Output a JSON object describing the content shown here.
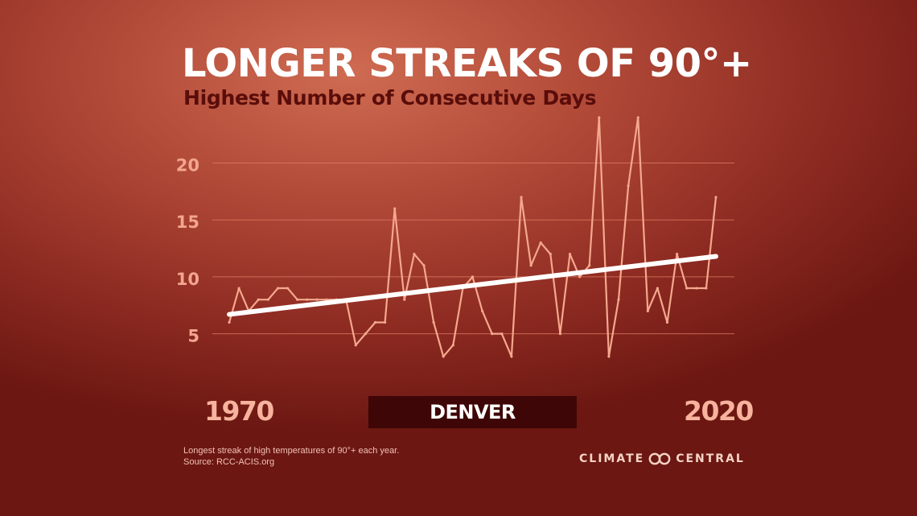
{
  "title": "LONGER STREAKS OF 90°+",
  "subtitle": "Highest Number of  Consecutive Days",
  "city": "DENVER",
  "year_start": "1970",
  "year_end": "2020",
  "footnote": "Longest streak of high temperatures of 90°+ each year.",
  "source": "Source: RCC-ACIS.org",
  "logo": {
    "left": "CLIMATE",
    "right": "CENTRAL"
  },
  "colors": {
    "series_line": "#f5a88e",
    "trend_line": "#ffffff",
    "tick_label": "#f3a58e",
    "gridline": "#e07f66",
    "label_box": "#3e0606"
  },
  "chart_data": {
    "type": "line",
    "xlim": [
      1970,
      2020
    ],
    "ylim": [
      2,
      24
    ],
    "yticks": [
      5,
      10,
      15,
      20
    ],
    "grid": true,
    "x": [
      1970,
      1971,
      1972,
      1973,
      1974,
      1975,
      1976,
      1977,
      1978,
      1979,
      1980,
      1981,
      1982,
      1983,
      1984,
      1985,
      1986,
      1987,
      1988,
      1989,
      1990,
      1991,
      1992,
      1993,
      1994,
      1995,
      1996,
      1997,
      1998,
      1999,
      2000,
      2001,
      2002,
      2003,
      2004,
      2005,
      2006,
      2007,
      2008,
      2009,
      2010,
      2011,
      2012,
      2013,
      2014,
      2015,
      2016,
      2017,
      2018,
      2019,
      2020
    ],
    "series": [
      {
        "values": [
          6,
          9,
          7,
          8,
          8,
          9,
          9,
          8,
          8,
          8,
          8,
          8,
          8,
          4,
          5,
          6,
          6,
          16,
          8,
          12,
          11,
          6,
          3,
          4,
          9,
          10,
          7,
          5,
          5,
          3,
          17,
          11,
          13,
          12,
          5,
          12,
          10,
          11,
          24,
          3,
          8,
          18,
          24,
          7,
          9,
          6,
          12,
          9,
          9,
          9,
          17
        ]
      }
    ],
    "trend": {
      "start": [
        1970,
        6.7
      ],
      "end": [
        2020,
        11.8
      ]
    }
  }
}
